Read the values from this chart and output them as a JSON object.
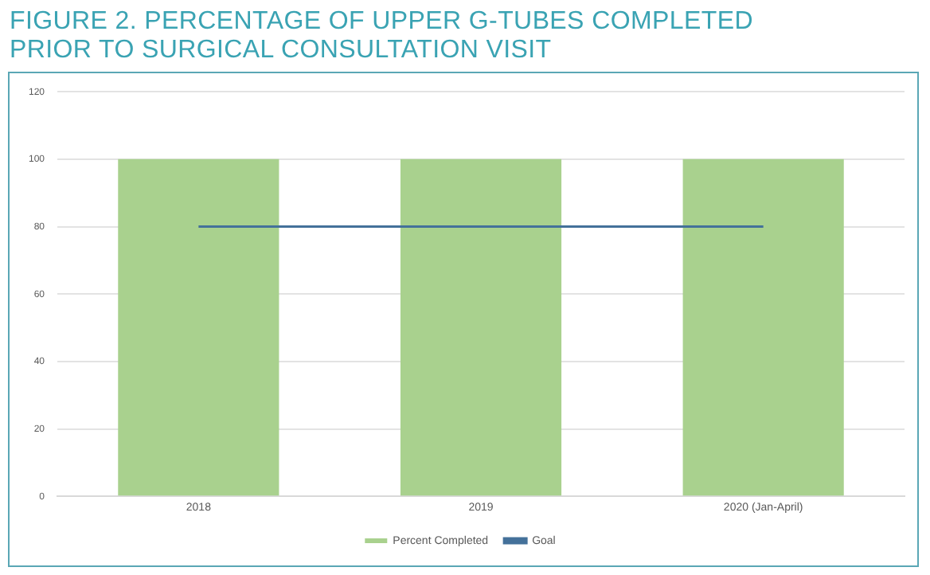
{
  "chart_data": {
    "type": "bar",
    "title": "FIGURE 2. PERCENTAGE OF UPPER G-TUBES COMPLETED PRIOR TO SURGICAL CONSULTATION VISIT",
    "categories": [
      "2018",
      "2019",
      "2020 (Jan-April)"
    ],
    "series": [
      {
        "name": "Percent Completed",
        "color": "#a9d18e",
        "values": [
          100,
          100,
          100
        ]
      },
      {
        "name": "Goal",
        "type": "line",
        "color": "#44719a",
        "values": [
          80,
          80,
          80
        ]
      }
    ],
    "ylim": [
      0,
      120
    ],
    "yticks": [
      0,
      20,
      40,
      60,
      80,
      100,
      120
    ],
    "grid": "y",
    "legend": "bottom",
    "marker": "none"
  }
}
